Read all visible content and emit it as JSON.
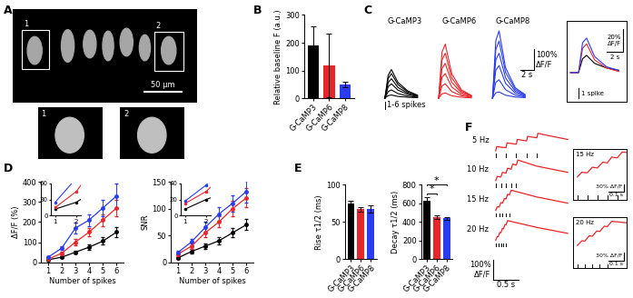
{
  "panel_labels": [
    "A",
    "B",
    "C",
    "D",
    "E",
    "F"
  ],
  "image_panel": {
    "type": "image",
    "insets": [
      "1",
      "2"
    ],
    "scale_bar": "50 µm"
  },
  "chart_data": [
    {
      "type": "bar",
      "ylabel": "Relative baseline F (a.u.)",
      "categories": [
        "G-CaMP3",
        "G-CaMP6",
        "G-CaMP8"
      ],
      "values": [
        190,
        118,
        50
      ],
      "errors": [
        70,
        115,
        10
      ],
      "colors": [
        "#000000",
        "#e8262a",
        "#2a3cf0"
      ],
      "ylim": [
        0,
        300
      ],
      "yticks": [
        0,
        100,
        200,
        300
      ]
    },
    {
      "type": "trace_groups",
      "x": [
        0,
        0.5,
        1,
        2,
        3.5,
        5
      ],
      "xlim": [
        -0.3,
        6.5
      ],
      "ylim": [
        -60,
        350
      ],
      "stimulus": 0,
      "annotation": "1-6 spikes",
      "scale_bar": {
        "y": 100,
        "y_label": "100%\nΔF/F",
        "x": 2,
        "x_label": "2 s"
      },
      "series": [
        {
          "name": "G-CaMP3",
          "color": "#000000",
          "traces": [
            [
              0,
              12,
              15,
              8,
              4,
              2
            ],
            [
              0,
              32,
              40,
              22,
              10,
              4
            ],
            [
              0,
              56,
              70,
              39,
              18,
              7
            ],
            [
              0,
              76,
              95,
              52,
              24,
              10
            ],
            [
              0,
              96,
              120,
              66,
              30,
              12
            ],
            [
              0,
              112,
              140,
              77,
              35,
              14
            ]
          ]
        },
        {
          "name": "G-CaMP6",
          "color": "#e8262a",
          "traces": [
            [
              0,
              21,
              25,
              11,
              4,
              1
            ],
            [
              0,
              60,
              70,
              32,
              11,
              4
            ],
            [
              0,
              102,
              120,
              54,
              18,
              6
            ],
            [
              0,
              145,
              170,
              77,
              26,
              9
            ],
            [
              0,
              187,
              220,
              99,
              33,
              11
            ],
            [
              0,
              225,
              265,
              119,
              40,
              13
            ]
          ]
        },
        {
          "name": "G-CaMP8",
          "color": "#2a3cf0",
          "traces": [
            [
              0,
              26,
              30,
              14,
              5,
              2
            ],
            [
              0,
              77,
              90,
              41,
              14,
              5
            ],
            [
              0,
              136,
              160,
              72,
              24,
              8
            ],
            [
              0,
              187,
              220,
              99,
              33,
              11
            ],
            [
              0,
              238,
              280,
              126,
              42,
              14
            ],
            [
              0,
              281,
              330,
              149,
              50,
              17
            ]
          ]
        }
      ],
      "inset": {
        "x": [
          -1,
          0,
          0.5,
          1,
          2,
          3.5,
          5
        ],
        "xlim": [
          -1.5,
          6
        ],
        "ylim": [
          -25,
          45
        ],
        "stimulus": 0,
        "stimulus_label": "1 spike",
        "scale_bar": {
          "y": 20,
          "y_label": "20%\nΔF/F",
          "x": 2,
          "x_label": "2 s"
        },
        "series": [
          {
            "color": "#000000",
            "values": [
              0,
              0,
              12,
              15,
              8,
              4,
              2
            ]
          },
          {
            "color": "#e8262a",
            "values": [
              0,
              0,
              21,
              25,
              11,
              4,
              1
            ]
          },
          {
            "color": "#2a3cf0",
            "values": [
              0,
              0,
              26,
              30,
              14,
              5,
              2
            ]
          }
        ]
      }
    },
    {
      "type": "line",
      "xlabel": "Number of spikes",
      "ylabel": "ΔF/F (%)",
      "marker": "o",
      "x": [
        1,
        2,
        3,
        4,
        5,
        6
      ],
      "xlim": [
        0.5,
        6.5
      ],
      "xticks": [
        1,
        2,
        3,
        4,
        5,
        6
      ],
      "ylim": [
        0,
        400
      ],
      "yticks": [
        0,
        100,
        200,
        300,
        400
      ],
      "series": [
        {
          "color": "#000000",
          "values": [
            12,
            25,
            50,
            75,
            105,
            150
          ],
          "errors": [
            3,
            5,
            8,
            12,
            18,
            25
          ]
        },
        {
          "color": "#e8262a",
          "values": [
            15,
            45,
            100,
            150,
            210,
            270
          ],
          "errors": [
            4,
            8,
            15,
            20,
            30,
            40
          ]
        },
        {
          "color": "#2a3cf0",
          "values": [
            25,
            70,
            170,
            210,
            270,
            330
          ],
          "errors": [
            5,
            10,
            25,
            30,
            40,
            60
          ]
        }
      ],
      "inset": {
        "xlim": [
          0.8,
          2.2
        ],
        "xticks": [
          1,
          2
        ],
        "ylim": [
          0,
          60
        ],
        "yticks": [
          0,
          30,
          60
        ]
      }
    },
    {
      "type": "line",
      "xlabel": "Number of spikes",
      "ylabel": "SNR",
      "marker": "o",
      "x": [
        1,
        2,
        3,
        4,
        5,
        6
      ],
      "xlim": [
        0.5,
        6.5
      ],
      "xticks": [
        1,
        2,
        3,
        4,
        5,
        6
      ],
      "ylim": [
        0,
        150
      ],
      "yticks": [
        0,
        50,
        100,
        150
      ],
      "series": [
        {
          "color": "#000000",
          "values": [
            8,
            20,
            30,
            40,
            55,
            70
          ],
          "errors": [
            2,
            4,
            5,
            6,
            8,
            10
          ]
        },
        {
          "color": "#e8262a",
          "values": [
            15,
            30,
            55,
            75,
            100,
            120
          ],
          "errors": [
            3,
            5,
            8,
            10,
            15,
            18
          ]
        },
        {
          "color": "#2a3cf0",
          "values": [
            18,
            38,
            65,
            90,
            110,
            132
          ],
          "errors": [
            3,
            6,
            10,
            12,
            15,
            20
          ]
        }
      ],
      "inset": {
        "xlim": [
          0.8,
          2.2
        ],
        "xticks": [
          1,
          2
        ],
        "ylim": [
          0,
          40
        ],
        "yticks": [
          0,
          20,
          40
        ]
      }
    },
    {
      "type": "bar",
      "ylabel": "Rise τ1/2 (ms)",
      "categories": [
        "G-CaMP3",
        "G-CaMP6",
        "G-CaMP8"
      ],
      "values": [
        75,
        67,
        68
      ],
      "errors": [
        4,
        3,
        5
      ],
      "colors": [
        "#000000",
        "#e8262a",
        "#2a3cf0"
      ],
      "ylim": [
        0,
        100
      ],
      "yticks": [
        0,
        50,
        100
      ]
    },
    {
      "type": "bar",
      "ylabel": "Decay τ1/2 (ms)",
      "categories": [
        "G-CaMP3",
        "G-CaMP6",
        "G-CaMP8"
      ],
      "values": [
        630,
        455,
        440
      ],
      "errors": [
        40,
        20,
        15
      ],
      "colors": [
        "#000000",
        "#e8262a",
        "#2a3cf0"
      ],
      "ylim": [
        0,
        800
      ],
      "yticks": [
        0,
        200,
        400,
        600,
        800
      ],
      "significance": [
        {
          "pair": [
            "G-CaMP3",
            "G-CaMP6"
          ],
          "label": "*"
        },
        {
          "pair": [
            "G-CaMP3",
            "G-CaMP8"
          ],
          "label": "*"
        }
      ]
    },
    {
      "type": "traces",
      "color": "#e8262a",
      "xlim": [
        -0.1,
        1.5
      ],
      "ylim": [
        -35,
        110
      ],
      "scale_bar": {
        "y": 100,
        "y_label": "100%\nΔF/F",
        "x": 0.5,
        "x_label": "0.5 s"
      },
      "series": [
        {
          "name": "5 Hz",
          "x": [
            0,
            0.02,
            0.2,
            0.22,
            0.4,
            0.42,
            0.6,
            0.62,
            0.8,
            0.82,
            1.0,
            1.4
          ],
          "values": [
            0,
            20,
            15,
            38,
            32,
            55,
            48,
            70,
            63,
            85,
            75,
            55
          ],
          "spikes": [
            0,
            0.2,
            0.4,
            0.6,
            0.8
          ]
        },
        {
          "name": "10 Hz",
          "x": [
            0,
            0.03,
            0.1,
            0.13,
            0.2,
            0.23,
            0.3,
            0.33,
            0.4,
            0.43,
            0.8,
            1.4
          ],
          "values": [
            0,
            20,
            17,
            40,
            36,
            60,
            55,
            80,
            75,
            100,
            70,
            40
          ],
          "spikes": [
            0,
            0.1,
            0.2,
            0.3,
            0.4
          ]
        },
        {
          "name": "15 Hz",
          "x": [
            0,
            0.03,
            0.067,
            0.1,
            0.133,
            0.17,
            0.2,
            0.23,
            0.267,
            0.3,
            0.8,
            1.4
          ],
          "values": [
            0,
            18,
            16,
            38,
            35,
            58,
            55,
            78,
            75,
            98,
            65,
            35
          ],
          "spikes": [
            0,
            0.067,
            0.133,
            0.2,
            0.267
          ]
        },
        {
          "name": "20 Hz",
          "x": [
            0,
            0.03,
            0.05,
            0.08,
            0.1,
            0.13,
            0.15,
            0.18,
            0.2,
            0.23,
            0.8,
            1.4
          ],
          "values": [
            0,
            18,
            17,
            38,
            36,
            57,
            55,
            76,
            74,
            95,
            62,
            33
          ],
          "spikes": [
            0,
            0.05,
            0.1,
            0.15,
            0.2
          ]
        }
      ],
      "insets": [
        {
          "name": "15 Hz",
          "xlim": [
            -0.03,
            0.33
          ],
          "ylim": [
            -90,
            110
          ],
          "scale_bar": {
            "y": 30,
            "y_label": "30% ΔF/F",
            "x": 0.1,
            "x_label": "0.1 s"
          }
        },
        {
          "name": "20 Hz",
          "xlim": [
            -0.03,
            0.33
          ],
          "ylim": [
            -90,
            110
          ],
          "scale_bar": {
            "y": 30,
            "y_label": "30% ΔF/F",
            "x": 0.1,
            "x_label": "0.1 s"
          }
        }
      ]
    }
  ]
}
